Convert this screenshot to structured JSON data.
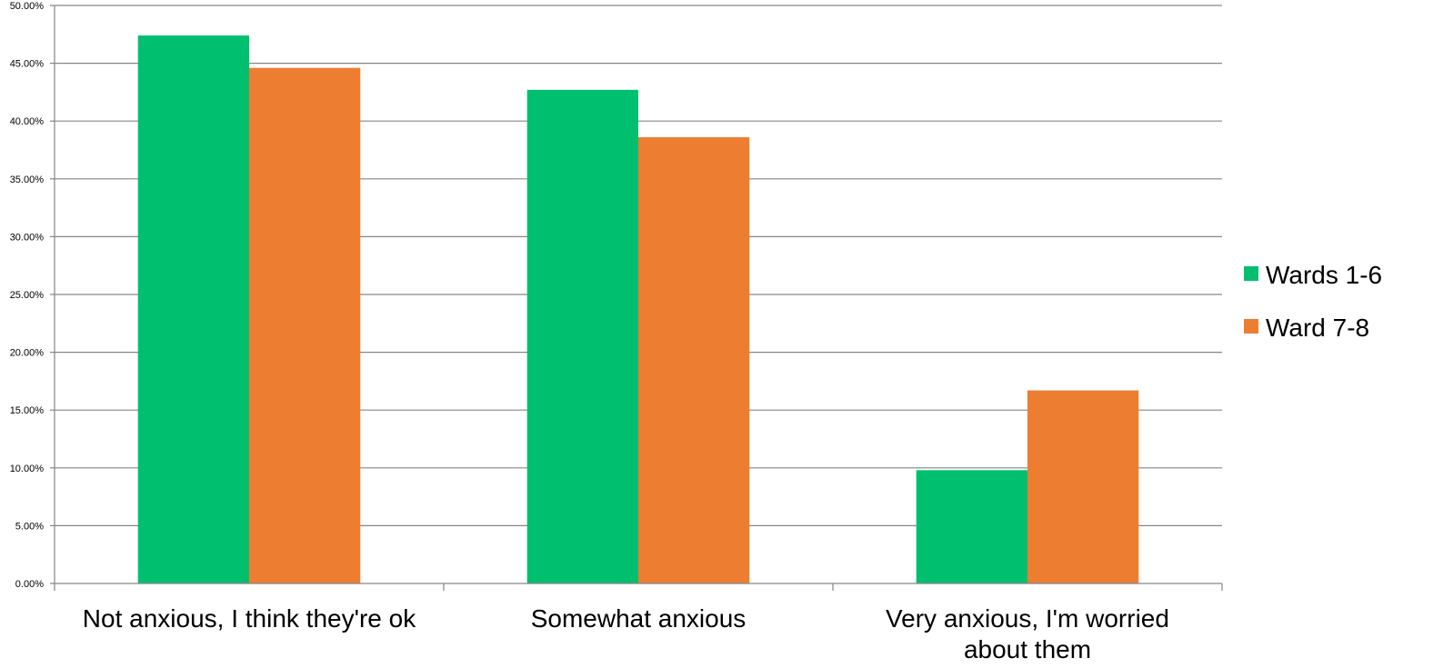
{
  "chart_data": {
    "type": "bar",
    "title": "",
    "xlabel": "",
    "ylabel": "",
    "categories": [
      [
        "Not anxious, I think they're ok"
      ],
      [
        "Somewhat anxious"
      ],
      [
        "Very anxious, I'm worried",
        "about them"
      ]
    ],
    "series": [
      {
        "name": "Wards 1-6",
        "values": [
          47.4,
          42.7,
          9.8
        ],
        "color": "#00BF6F"
      },
      {
        "name": "Ward 7-8",
        "values": [
          44.6,
          38.6,
          16.7
        ],
        "color": "#ED7D31"
      }
    ],
    "ylim": [
      0,
      50
    ],
    "yticks": [
      0,
      5,
      10,
      15,
      20,
      25,
      30,
      35,
      40,
      45,
      50
    ],
    "ytick_labels": [
      "0.00%",
      "5.00%",
      "10.00%",
      "15.00%",
      "20.00%",
      "25.00%",
      "30.00%",
      "35.00%",
      "40.00%",
      "45.00%",
      "50.00%"
    ],
    "grid": true,
    "legend_position": "right",
    "gridline_color": "#868686",
    "axis_color": "#868686"
  }
}
